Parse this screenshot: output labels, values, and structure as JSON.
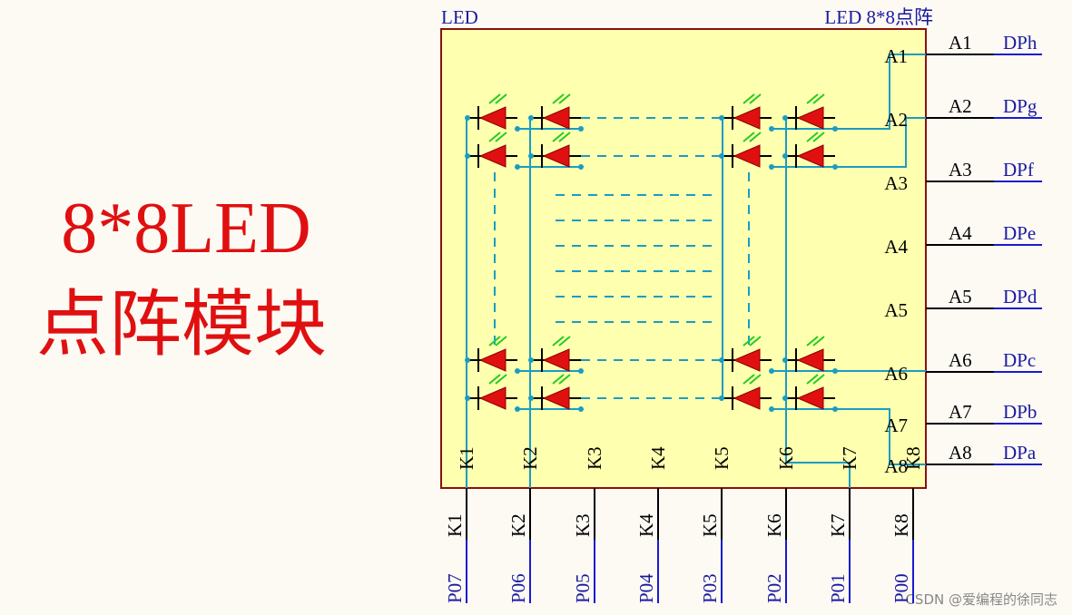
{
  "title": {
    "line1": "8*8LED",
    "line2": "点阵模块"
  },
  "component": {
    "designator": "LED",
    "comment": "LED 8*8点阵"
  },
  "right_pins": [
    {
      "inner": "A1",
      "number": "A1",
      "net": "DPh"
    },
    {
      "inner": "A2",
      "number": "A2",
      "net": "DPg"
    },
    {
      "inner": "A3",
      "number": "A3",
      "net": "DPf"
    },
    {
      "inner": "A4",
      "number": "A4",
      "net": "DPe"
    },
    {
      "inner": "A5",
      "number": "A5",
      "net": "DPd"
    },
    {
      "inner": "A6",
      "number": "A6",
      "net": "DPc"
    },
    {
      "inner": "A7",
      "number": "A7",
      "net": "DPb"
    },
    {
      "inner": "A8",
      "number": "A8",
      "net": "DPa"
    }
  ],
  "bottom_pins": [
    {
      "inner": "K1",
      "number": "K1",
      "net": "P07"
    },
    {
      "inner": "K2",
      "number": "K2",
      "net": "P06"
    },
    {
      "inner": "K3",
      "number": "K3",
      "net": "P05"
    },
    {
      "inner": "K4",
      "number": "K4",
      "net": "P04"
    },
    {
      "inner": "K5",
      "number": "K5",
      "net": "P03"
    },
    {
      "inner": "K6",
      "number": "K6",
      "net": "P02"
    },
    {
      "inner": "K7",
      "number": "K7",
      "net": "P01"
    },
    {
      "inner": "K8",
      "number": "K8",
      "net": "P00"
    }
  ],
  "watermark": "CSDN @爱编程的徐同志"
}
